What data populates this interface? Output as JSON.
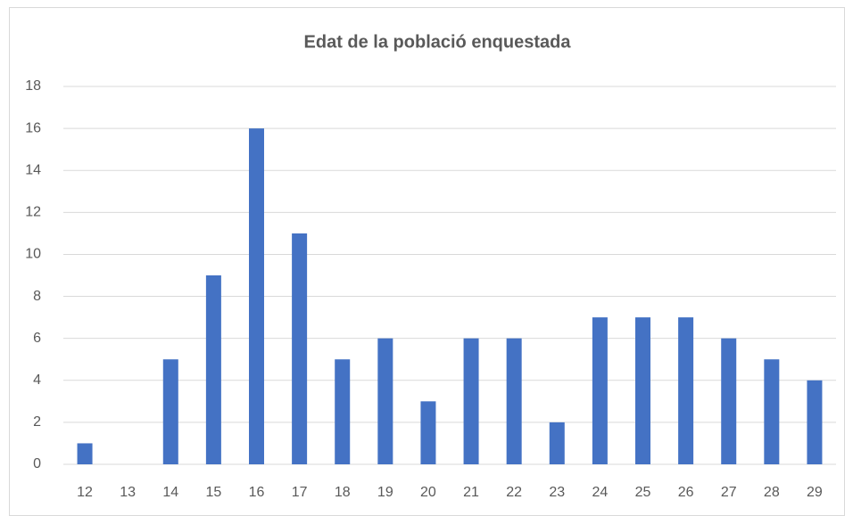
{
  "chart_data": {
    "type": "bar",
    "title": "Edat de la població enquestada",
    "categories": [
      "12",
      "13",
      "14",
      "15",
      "16",
      "17",
      "18",
      "19",
      "20",
      "21",
      "22",
      "23",
      "24",
      "25",
      "26",
      "27",
      "28",
      "29"
    ],
    "values": [
      1,
      0,
      5,
      9,
      16,
      11,
      5,
      6,
      3,
      6,
      6,
      2,
      7,
      7,
      7,
      6,
      5,
      4
    ],
    "color": "#4472c4",
    "ylim": [
      0,
      18
    ],
    "yticks": [
      0,
      2,
      4,
      6,
      8,
      10,
      12,
      14,
      16,
      18
    ],
    "grid": true
  }
}
